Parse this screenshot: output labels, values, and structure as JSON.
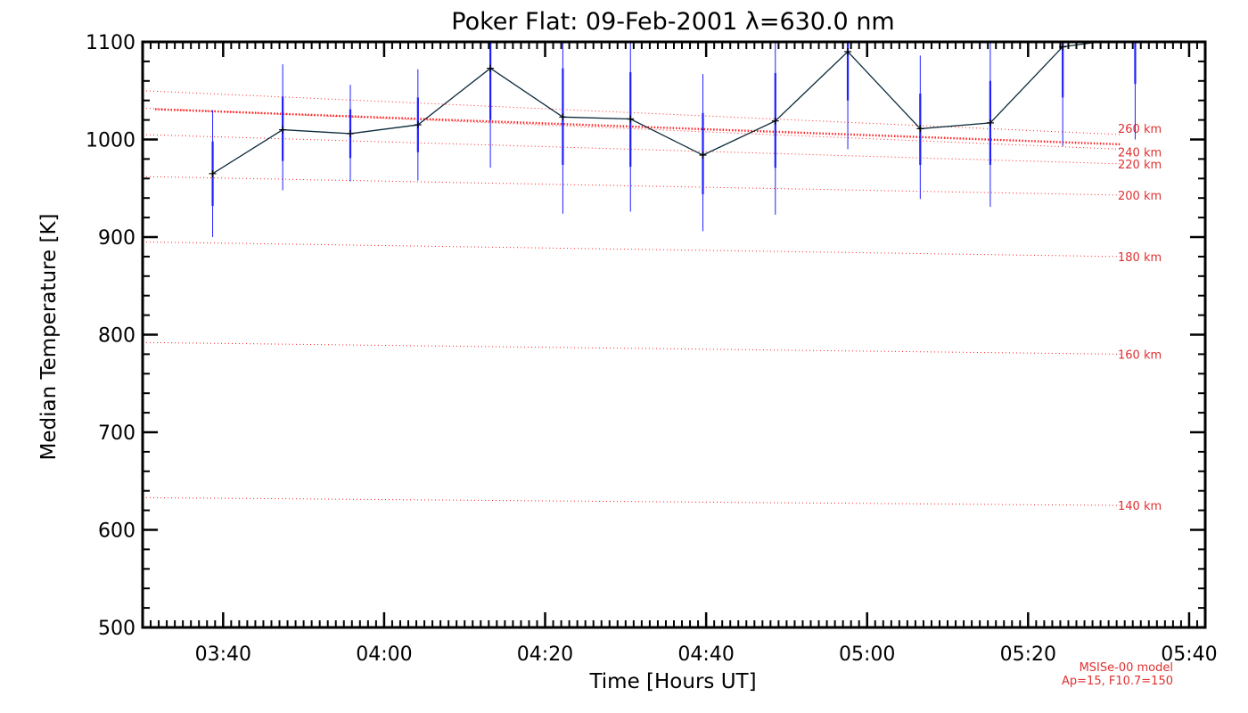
{
  "chart_data": {
    "type": "line",
    "title": "Poker Flat: 09-Feb-2001 λ=630.0 nm",
    "xlabel": "Time [Hours UT]",
    "ylabel": "Median Temperature [K]",
    "xlim": [
      3.5,
      5.7
    ],
    "ylim": [
      500,
      1100
    ],
    "x_ticks": [
      {
        "value": 3.6667,
        "label": "03:40"
      },
      {
        "value": 4.0,
        "label": "04:00"
      },
      {
        "value": 4.3333,
        "label": "04:20"
      },
      {
        "value": 4.6667,
        "label": "04:40"
      },
      {
        "value": 5.0,
        "label": "05:00"
      },
      {
        "value": 5.3333,
        "label": "05:20"
      },
      {
        "value": 5.6667,
        "label": "05:40"
      }
    ],
    "y_ticks": [
      {
        "value": 500,
        "label": "500"
      },
      {
        "value": 600,
        "label": "600"
      },
      {
        "value": 700,
        "label": "700"
      },
      {
        "value": 800,
        "label": "800"
      },
      {
        "value": 900,
        "label": "900"
      },
      {
        "value": 1000,
        "label": "1000"
      },
      {
        "value": 1100,
        "label": "1100"
      }
    ],
    "series": [
      {
        "name": "Median temperature",
        "x": [
          3.645,
          3.79,
          3.93,
          4.07,
          4.22,
          4.37,
          4.51,
          4.66,
          4.81,
          4.96,
          5.11,
          5.255,
          5.405,
          5.555
        ],
        "values": [
          965,
          1010,
          1006,
          1015,
          1073,
          1023,
          1021,
          984,
          1019,
          1090,
          1011,
          1017,
          1095,
          1105
        ],
        "err_upper": [
          1030,
          1077,
          1056,
          1072,
          1110,
          1110,
          1110,
          1067,
          1110,
          1110,
          1086,
          1110,
          1110,
          1110
        ],
        "err_lower": [
          900,
          948,
          957,
          958,
          971,
          924,
          926,
          906,
          923,
          990,
          939,
          931,
          993,
          1000
        ],
        "err_inner_upper": [
          998,
          1044,
          1031,
          1043,
          1110,
          1073,
          1069,
          1027,
          1068,
          1110,
          1047,
          1060,
          1110,
          1110
        ],
        "err_inner_lower": [
          932,
          978,
          981,
          987,
          1020,
          974,
          972,
          944,
          971,
          1040,
          974,
          974,
          1043,
          1057
        ]
      }
    ],
    "model_curves": [
      {
        "label": "140 km",
        "start": 633,
        "end": 625
      },
      {
        "label": "160 km",
        "start": 792,
        "end": 780
      },
      {
        "label": "180 km",
        "start": 895,
        "end": 880
      },
      {
        "label": "200 km",
        "start": 962,
        "end": 943
      },
      {
        "label": "220 km",
        "start": 1005,
        "end": 975
      },
      {
        "label": "240 km",
        "start": 1032,
        "end": 990
      },
      {
        "label": "260 km",
        "start": 1050,
        "end": 1005
      }
    ],
    "model_mean": {
      "start": 1031,
      "end": 995
    },
    "annotations": [
      "MSISe-00 model",
      "Ap=15, F10.7=150"
    ],
    "colors": {
      "axes": "#000000",
      "series_line": "#0a2a3a",
      "error_bar": "#2020ff",
      "model": "#ff2020",
      "model_label": "#e03030"
    }
  }
}
